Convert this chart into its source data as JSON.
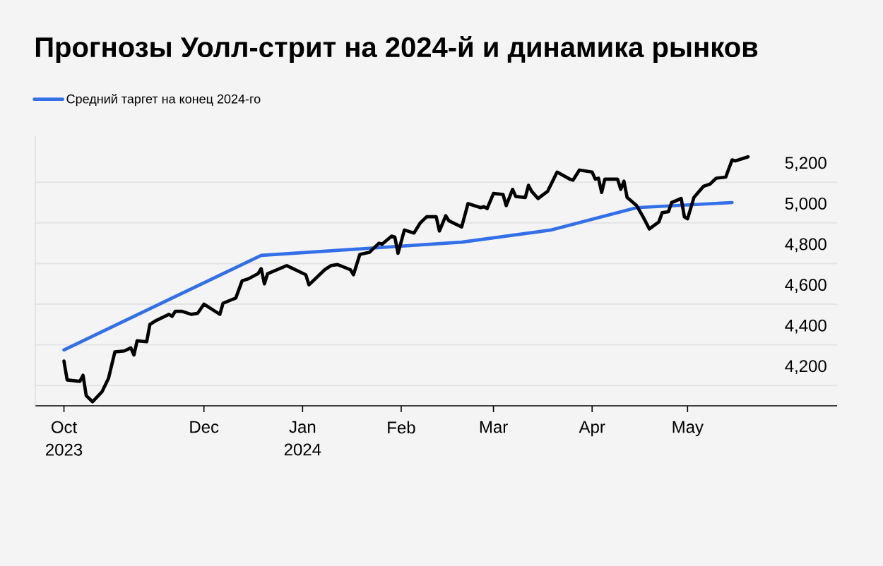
{
  "chart_data": {
    "type": "line",
    "title": "Прогнозы Уолл-стрит на 2024-й и динамика рынков",
    "series": [
      {
        "name": "Средний таргет на конец 2024-го",
        "color": "#3370e8",
        "x": [
          "2023-10-18",
          "2023-12-19",
          "2024-02-20",
          "2024-03-19",
          "2024-04-15",
          "2024-05-15"
        ],
        "values": [
          4375,
          4840,
          4905,
          4965,
          5075,
          5100
        ]
      },
      {
        "color": "#000000",
        "x": [
          "2023-10-18",
          "2023-10-19",
          "2023-10-23",
          "2023-10-24",
          "2023-10-25",
          "2023-10-27",
          "2023-10-30",
          "2023-11-01",
          "2023-11-03",
          "2023-11-06",
          "2023-11-08",
          "2023-11-09",
          "2023-11-10",
          "2023-11-13",
          "2023-11-14",
          "2023-11-16",
          "2023-11-20",
          "2023-11-21",
          "2023-11-22",
          "2023-11-24",
          "2023-11-27",
          "2023-11-29",
          "2023-12-01",
          "2023-12-04",
          "2023-12-06",
          "2023-12-07",
          "2023-12-11",
          "2023-12-13",
          "2023-12-15",
          "2023-12-18",
          "2023-12-19",
          "2023-12-20",
          "2023-12-21",
          "2023-12-27",
          "2023-12-29",
          "2024-01-02",
          "2024-01-03",
          "2024-01-08",
          "2024-01-10",
          "2024-01-12",
          "2024-01-16",
          "2024-01-17",
          "2024-01-19",
          "2024-01-22",
          "2024-01-25",
          "2024-01-26",
          "2024-01-29",
          "2024-01-30",
          "2024-01-31",
          "2024-02-02",
          "2024-02-05",
          "2024-02-07",
          "2024-02-09",
          "2024-02-12",
          "2024-02-13",
          "2024-02-15",
          "2024-02-16",
          "2024-02-20",
          "2024-02-22",
          "2024-02-26",
          "2024-02-27",
          "2024-02-28",
          "2024-03-01",
          "2024-03-04",
          "2024-03-05",
          "2024-03-07",
          "2024-03-08",
          "2024-03-11",
          "2024-03-12",
          "2024-03-13",
          "2024-03-15",
          "2024-03-18",
          "2024-03-21",
          "2024-03-25",
          "2024-03-26",
          "2024-03-28",
          "2024-04-01",
          "2024-04-02",
          "2024-04-03",
          "2024-04-04",
          "2024-04-05",
          "2024-04-09",
          "2024-04-10",
          "2024-04-11",
          "2024-04-12",
          "2024-04-15",
          "2024-04-17",
          "2024-04-19",
          "2024-04-22",
          "2024-04-23",
          "2024-04-25",
          "2024-04-26",
          "2024-04-29",
          "2024-04-30",
          "2024-05-01",
          "2024-05-03",
          "2024-05-06",
          "2024-05-08",
          "2024-05-10",
          "2024-05-13",
          "2024-05-15",
          "2024-05-16",
          "2024-05-20"
        ],
        "values": [
          4320,
          4227,
          4220,
          4250,
          4150,
          4120,
          4170,
          4235,
          4365,
          4370,
          4385,
          4350,
          4420,
          4415,
          4500,
          4520,
          4550,
          4540,
          4565,
          4565,
          4550,
          4555,
          4600,
          4570,
          4550,
          4605,
          4630,
          4715,
          4725,
          4750,
          4775,
          4700,
          4750,
          4790,
          4775,
          4745,
          4695,
          4770,
          4790,
          4795,
          4770,
          4745,
          4845,
          4855,
          4900,
          4895,
          4935,
          4930,
          4850,
          4965,
          4950,
          5000,
          5030,
          5030,
          4960,
          5035,
          5010,
          4980,
          5095,
          5075,
          5080,
          5070,
          5145,
          5140,
          5085,
          5165,
          5130,
          5125,
          5185,
          5155,
          5120,
          5155,
          5250,
          5215,
          5210,
          5260,
          5250,
          5215,
          5220,
          5150,
          5215,
          5215,
          5165,
          5205,
          5125,
          5085,
          5030,
          4970,
          5005,
          5050,
          5055,
          5100,
          5120,
          5030,
          5020,
          5125,
          5180,
          5190,
          5220,
          5225,
          5310,
          5305,
          5325
        ]
      }
    ],
    "xlim": [
      "2023-10-09",
      "2024-06-17"
    ],
    "ylim": [
      4100,
      5430
    ],
    "xticks": [
      {
        "value": "2023-10-18",
        "label": "Oct 2023"
      },
      {
        "value": "2023-12-01",
        "label": "Dec"
      },
      {
        "value": "2024-01-01",
        "label": "Jan 2024"
      },
      {
        "value": "2024-02-01",
        "label": "Feb"
      },
      {
        "value": "2024-03-01",
        "label": "Mar"
      },
      {
        "value": "2024-04-01",
        "label": "Apr"
      },
      {
        "value": "2024-05-01",
        "label": "May"
      }
    ],
    "yticks": [
      {
        "value": 4200,
        "label": "4,200"
      },
      {
        "value": 4400,
        "label": "4,400"
      },
      {
        "value": 4600,
        "label": "4,600"
      },
      {
        "value": 4800,
        "label": "4,800"
      },
      {
        "value": 5000,
        "label": "5,000"
      },
      {
        "value": 5200,
        "label": "5,200"
      }
    ],
    "grid": "y",
    "legend": "top left"
  }
}
